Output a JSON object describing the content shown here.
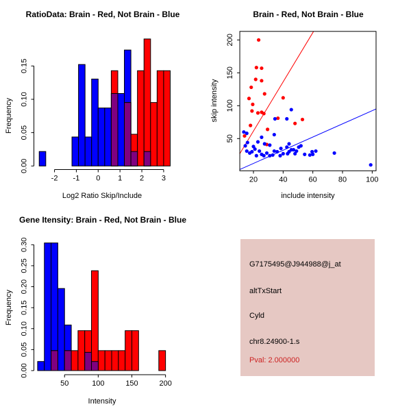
{
  "window": {
    "background": "#FFFFFF"
  },
  "colors": {
    "brain": "#FF0000",
    "not_brain": "#0000FF",
    "overlap": "#800080",
    "axis": "#000000",
    "info_bg": "#E6C8C3",
    "pval_red": "#CC2222"
  },
  "chart_data": [
    {
      "id": "ratio_histogram",
      "type": "bar",
      "subtype": "overlaid-histogram",
      "title": "RatioData: Brain - Red, Not Brain - Blue",
      "xlabel": "Log2 Ratio Skip/Include",
      "ylabel": "Frequency",
      "xticks": [
        -2,
        -1,
        0,
        1,
        2,
        3
      ],
      "yticks": [
        0,
        0.05,
        0.1,
        0.15
      ],
      "ytick_labels": [
        "0.00",
        "0.05",
        "0.10",
        "0.15"
      ],
      "xlim": [
        -2.85,
        3.35
      ],
      "ylim": [
        0,
        0.195
      ],
      "grid": false,
      "bin_width": 0.3,
      "series": [
        {
          "name": "Not Brain (blue)",
          "color": "#0000FF",
          "bins": [
            [
              -2.7,
              0.0217
            ],
            [
              -1.2,
              0.0435
            ],
            [
              -0.9,
              0.1522
            ],
            [
              -0.6,
              0.0435
            ],
            [
              -0.3,
              0.1304
            ],
            [
              0,
              0.087
            ],
            [
              0.3,
              0.087
            ],
            [
              0.6,
              0.1087
            ],
            [
              0.9,
              0.1087
            ],
            [
              1.2,
              0.1739
            ],
            [
              1.5,
              0.0217
            ],
            [
              2.1,
              0.0217
            ]
          ]
        },
        {
          "name": "Brain (red)",
          "color": "#FF0000",
          "bins": [
            [
              0.6,
              0.1429
            ],
            [
              1.2,
              0.0952
            ],
            [
              1.5,
              0.0476
            ],
            [
              1.8,
              0.1429
            ],
            [
              2.1,
              0.1905
            ],
            [
              2.4,
              0.0952
            ],
            [
              2.7,
              0.1429
            ],
            [
              3.0,
              0.1429
            ]
          ]
        }
      ]
    },
    {
      "id": "intensity_scatter",
      "type": "scatter",
      "title": "Brain - Red, Not Brain - Blue",
      "xlabel": "include intensity",
      "ylabel": "skip intensity",
      "xticks": [
        20,
        40,
        60,
        80,
        100
      ],
      "yticks": [
        50,
        100,
        150,
        200
      ],
      "xlim": [
        10.8,
        102.6
      ],
      "ylim": [
        1,
        213
      ],
      "grid": false,
      "series": [
        {
          "name": "Brain (red)",
          "color": "#FF0000",
          "points": [
            [
              23.5,
              200
            ],
            [
              22,
              158
            ],
            [
              25.5,
              157
            ],
            [
              21.5,
              140
            ],
            [
              25.5,
              138
            ],
            [
              18.5,
              128
            ],
            [
              27.5,
              118
            ],
            [
              17,
              111
            ],
            [
              19.5,
              102
            ],
            [
              19,
              92
            ],
            [
              23,
              89
            ],
            [
              25.5,
              90
            ],
            [
              27,
              88
            ],
            [
              18,
              70
            ],
            [
              29.5,
              64
            ],
            [
              40,
              112
            ],
            [
              36.5,
              81
            ],
            [
              48,
              73
            ],
            [
              53,
              79
            ],
            [
              29,
              41
            ],
            [
              14,
              54
            ]
          ]
        },
        {
          "name": "Not Brain (blue)",
          "color": "#0000FF",
          "points": [
            [
              13.5,
              60
            ],
            [
              15.5,
              58
            ],
            [
              16,
              44
            ],
            [
              14.5,
              39
            ],
            [
              15.5,
              31
            ],
            [
              17.5,
              28
            ],
            [
              20,
              38
            ],
            [
              23,
              45
            ],
            [
              25.5,
              52
            ],
            [
              27.5,
              42
            ],
            [
              31,
              40
            ],
            [
              25.5,
              26
            ],
            [
              29,
              28
            ],
            [
              24,
              31
            ],
            [
              27,
              24
            ],
            [
              31,
              24
            ],
            [
              34,
              31
            ],
            [
              34,
              56
            ],
            [
              34.5,
              80
            ],
            [
              38.5,
              35
            ],
            [
              36,
              30
            ],
            [
              38,
              24
            ],
            [
              40,
              27
            ],
            [
              42.5,
              37
            ],
            [
              42.5,
              80
            ],
            [
              43,
              27
            ],
            [
              44,
              30
            ],
            [
              45.5,
              94
            ],
            [
              45.5,
              33
            ],
            [
              47,
              33
            ],
            [
              49,
              31
            ],
            [
              50.5,
              37
            ],
            [
              52,
              39
            ],
            [
              54.5,
              26
            ],
            [
              58,
              25
            ],
            [
              59.5,
              30
            ],
            [
              62,
              31
            ],
            [
              60,
              26
            ],
            [
              74.5,
              28
            ],
            [
              99,
              10
            ],
            [
              44,
              42
            ],
            [
              21,
              34
            ],
            [
              19,
              30
            ],
            [
              22,
              24
            ],
            [
              48,
              27
            ],
            [
              33,
              25
            ]
          ]
        }
      ],
      "lines": [
        {
          "name": "red-reference-line",
          "color": "#FF0000",
          "from": [
            10.8,
            27
          ],
          "to": [
            60.5,
            213
          ]
        },
        {
          "name": "blue-reference-line",
          "color": "#0000FF",
          "from": [
            10.8,
            3
          ],
          "to": [
            102.6,
            95
          ]
        }
      ]
    },
    {
      "id": "gene_intensity_histogram",
      "type": "bar",
      "subtype": "overlaid-histogram",
      "title": "Gene Itensity: Brain - Red, Not Brain - Blue",
      "xlabel": "Intensity",
      "ylabel": "Frequency",
      "xticks": [
        50,
        100,
        150,
        200
      ],
      "yticks": [
        0,
        0.05,
        0.1,
        0.15,
        0.2,
        0.25,
        0.3
      ],
      "ytick_labels": [
        "0.00",
        "0.05",
        "0.10",
        "0.15",
        "0.20",
        "0.25",
        "0.30"
      ],
      "xlim": [
        5,
        205
      ],
      "ylim": [
        0,
        0.31
      ],
      "grid": false,
      "bin_width": 10,
      "series": [
        {
          "name": "Not Brain (blue)",
          "color": "#0000FF",
          "bins": [
            [
              10,
              0.0217
            ],
            [
              20,
              0.3043
            ],
            [
              30,
              0.3043
            ],
            [
              40,
              0.1957
            ],
            [
              50,
              0.1087
            ],
            [
              80,
              0.0435
            ],
            [
              90,
              0.0217
            ]
          ]
        },
        {
          "name": "Brain (red)",
          "color": "#FF0000",
          "bins": [
            [
              30,
              0.0476
            ],
            [
              50,
              0.0476
            ],
            [
              60,
              0.0476
            ],
            [
              70,
              0.0952
            ],
            [
              80,
              0.0952
            ],
            [
              90,
              0.2381
            ],
            [
              100,
              0.0476
            ],
            [
              110,
              0.0476
            ],
            [
              120,
              0.0476
            ],
            [
              130,
              0.0476
            ],
            [
              140,
              0.0952
            ],
            [
              150,
              0.0952
            ],
            [
              190,
              0.0476
            ]
          ]
        }
      ]
    }
  ],
  "info_panel": {
    "bg_color": "#E6C8C3",
    "lines": [
      {
        "text": "G7175495@J944988@j_at",
        "color": "#000000"
      },
      {
        "text": "altTxStart",
        "color": "#000000"
      },
      {
        "text": "Cyld",
        "color": "#000000"
      },
      {
        "text": "chr8.24900-1.s",
        "color": "#000000"
      },
      {
        "text": "Pval: 2.000000",
        "color": "#CC2222"
      }
    ]
  }
}
